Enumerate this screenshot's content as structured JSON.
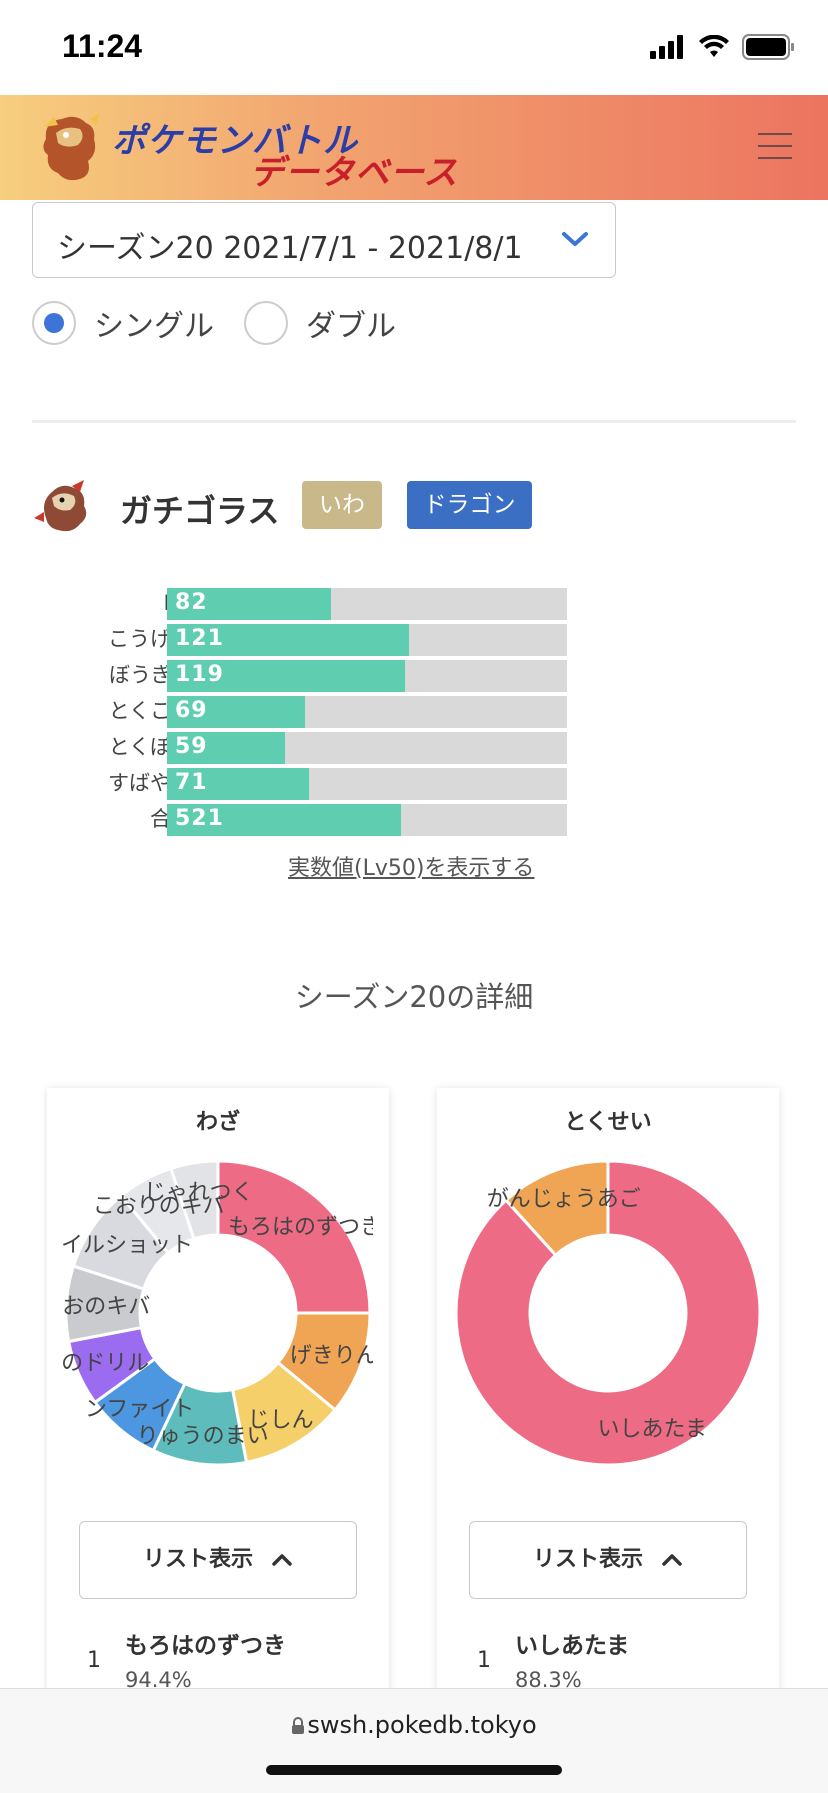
{
  "status_bar": {
    "time": "11:24"
  },
  "header": {
    "logo_line1": "ポケモンバトル",
    "logo_line2": "データベース"
  },
  "season_select": {
    "value": "シーズン20  2021/7/1 - 2021/8/1"
  },
  "battle_format": {
    "options": [
      "シングル",
      "ダブル"
    ],
    "selected": "シングル"
  },
  "pokemon": {
    "name": "ガチゴラス",
    "types": [
      {
        "label": "いわ",
        "color": "#c8b88a"
      },
      {
        "label": "ドラゴン",
        "color": "#3a6fc4"
      }
    ],
    "stats": [
      {
        "label": "HP",
        "value": 82
      },
      {
        "label": "こうげき",
        "value": 121
      },
      {
        "label": "ぼうぎょ",
        "value": 119
      },
      {
        "label": "とくこう",
        "value": 69
      },
      {
        "label": "とくぼう",
        "value": 59
      },
      {
        "label": "すばやさ",
        "value": 71
      },
      {
        "label": "合計",
        "value": 521
      }
    ],
    "real_value_link": "実数値(Lv50)を表示する"
  },
  "detail_title": "シーズン20の詳細",
  "cards": {
    "moves": {
      "title": "わざ",
      "list_button": "リスト表示",
      "first_item": {
        "rank": "1",
        "name": "もろはのずつき",
        "pct": "94.4%"
      }
    },
    "abilities": {
      "title": "とくせい",
      "list_button": "リスト表示",
      "first_item": {
        "rank": "1",
        "name": "いしあたま",
        "pct": "88.3%"
      }
    }
  },
  "chart_data": [
    {
      "type": "pie",
      "title": "わざ",
      "categories": [
        "もろはのずつき",
        "げきりん",
        "じしん",
        "りゅうのまい",
        "インファイト",
        "つのドリル",
        "ほのおのキバ",
        "ストーンエッジ/ケイルショット",
        "こおりのキバ",
        "じゃれつく"
      ],
      "values": [
        25.0,
        11.0,
        11.0,
        10.0,
        8.0,
        7.0,
        8.0,
        9.0,
        6.0,
        5.0
      ],
      "colors": [
        "#ee6b85",
        "#f0a555",
        "#f5cf6a",
        "#5fbcbc",
        "#4c97e0",
        "#9b6cf0",
        "#c9cbcf",
        "#d8dadf",
        "#e6e7ea",
        "#e2e3e6"
      ],
      "labels_visible": [
        "もろはのずつき",
        "げきりん",
        "じしん",
        "りゅうのまい",
        "ンファイト",
        "のドリル",
        "のおのキバ",
        "ケイルショット",
        "こおりのキバ",
        "じゃれつく"
      ]
    },
    {
      "type": "pie",
      "title": "とくせい",
      "categories": [
        "いしあたま",
        "がんじょうあご"
      ],
      "values": [
        88.3,
        11.7
      ],
      "colors": [
        "#ee6b85",
        "#f0a555"
      ]
    }
  ],
  "bottom_bar": {
    "url": "swsh.pokedb.tokyo"
  }
}
